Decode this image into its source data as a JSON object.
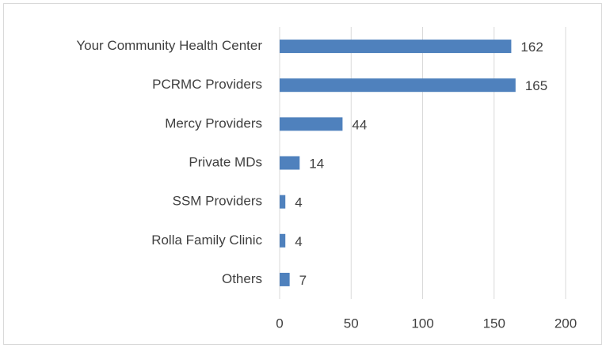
{
  "chart_data": {
    "type": "bar",
    "orientation": "horizontal",
    "categories": [
      "Your Community Health Center",
      "PCRMC Providers",
      "Mercy Providers",
      "Private MDs",
      "SSM Providers",
      "Rolla Family Clinic",
      "Others"
    ],
    "values": [
      162,
      165,
      44,
      14,
      4,
      4,
      7
    ],
    "color": "#4f81bd",
    "xlim": [
      0,
      200
    ],
    "xticks": [
      0,
      50,
      100,
      150,
      200
    ],
    "grid": true
  }
}
